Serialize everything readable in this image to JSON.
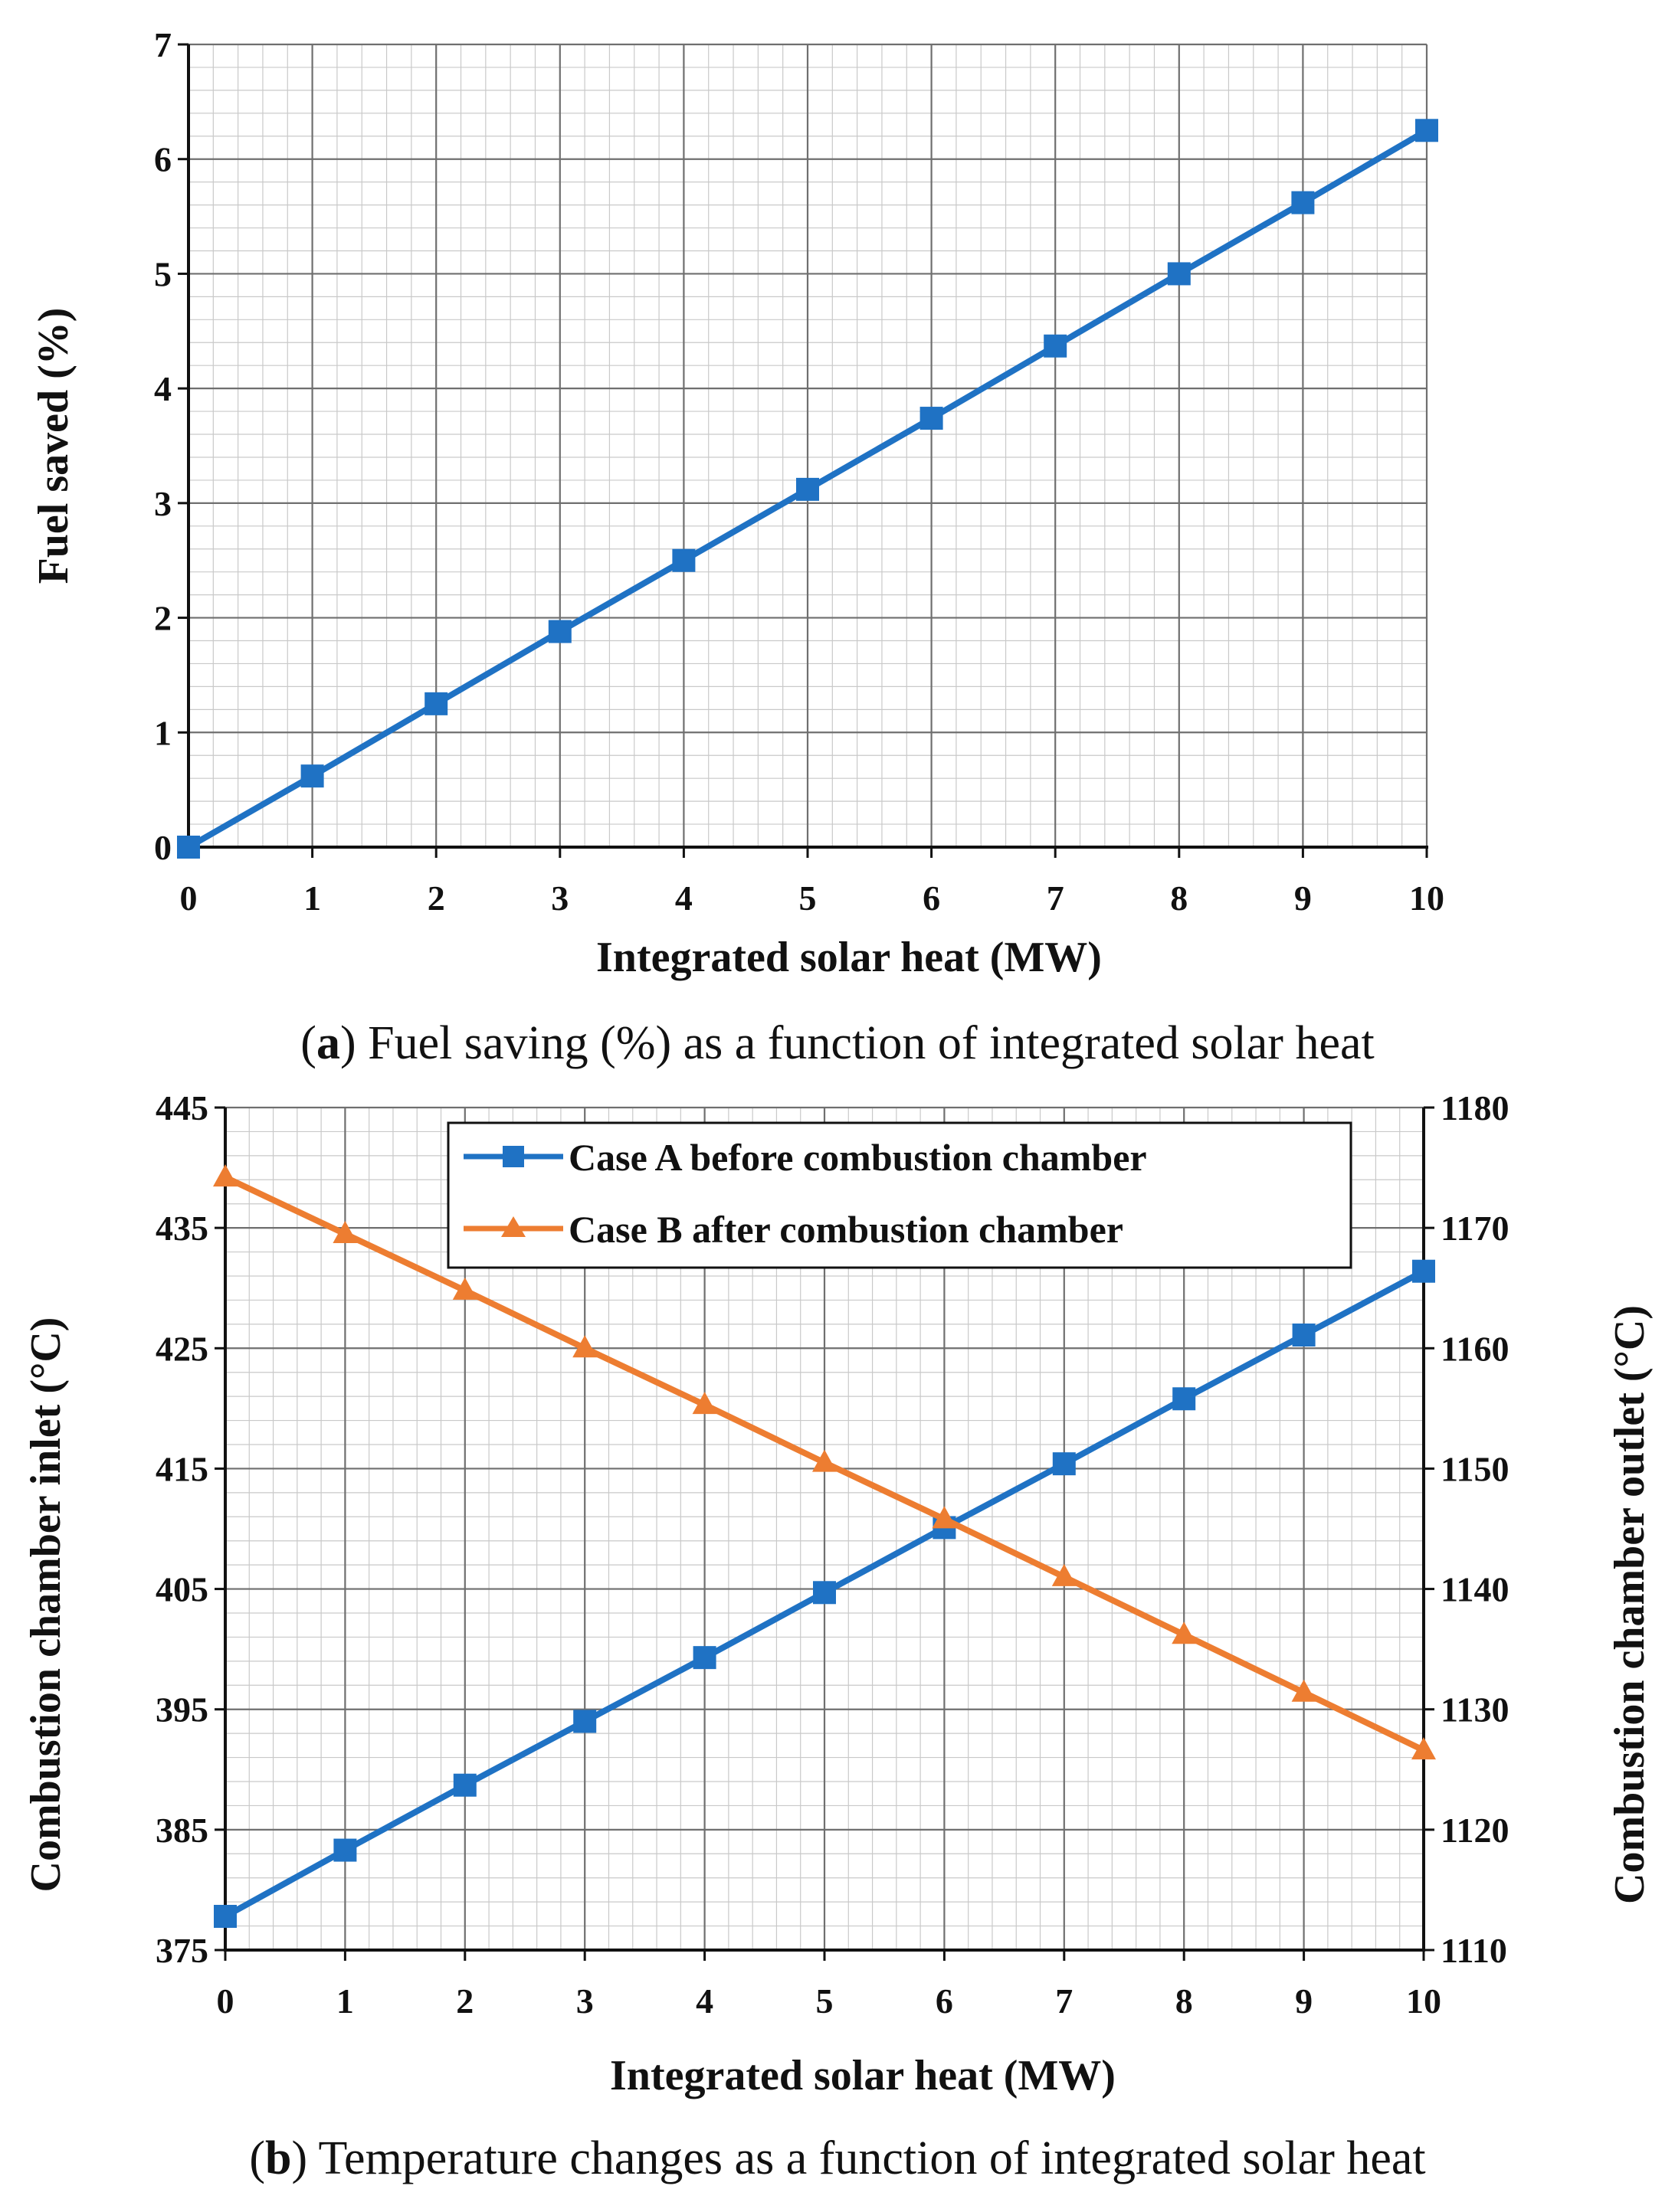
{
  "chart_data": [
    {
      "type": "line",
      "x": [
        0,
        1,
        2,
        3,
        4,
        5,
        6,
        7,
        8,
        9,
        10
      ],
      "xlim": [
        0,
        10
      ],
      "ylim": [
        0,
        7
      ],
      "xticks": [
        "0",
        "1",
        "2",
        "3",
        "4",
        "5",
        "6",
        "7",
        "8",
        "9",
        "10"
      ],
      "yticks": [
        "0",
        "1",
        "2",
        "3",
        "4",
        "5",
        "6",
        "7"
      ],
      "xlabel": "Integrated solar heat (MW)",
      "ylabel": "Fuel saved (%)",
      "grid": true,
      "series": [
        {
          "name": "Fuel saved",
          "color": "#1f72c4",
          "marker": "square",
          "values": [
            0,
            0.62,
            1.25,
            1.88,
            2.5,
            3.12,
            3.74,
            4.37,
            5.0,
            5.62,
            6.25
          ]
        }
      ],
      "caption": {
        "open": "(",
        "letter": "a",
        "rest": ") Fuel saving (%) as a function of integrated solar heat"
      }
    },
    {
      "type": "line",
      "x": [
        0,
        1,
        2,
        3,
        4,
        5,
        6,
        7,
        8,
        9,
        10
      ],
      "xlim": [
        0,
        10
      ],
      "ylim": [
        375,
        445
      ],
      "ylim_right": [
        1110,
        1180
      ],
      "xticks": [
        "0",
        "1",
        "2",
        "3",
        "4",
        "5",
        "6",
        "7",
        "8",
        "9",
        "10"
      ],
      "yticks": [
        "375",
        "385",
        "395",
        "405",
        "415",
        "425",
        "435",
        "445"
      ],
      "yticks_right": [
        "1110",
        "1120",
        "1130",
        "1140",
        "1150",
        "1160",
        "1170",
        "1180"
      ],
      "xlabel": "Integrated solar heat (MW)",
      "ylabel": "Combustion chamber inlet (°C)",
      "ylabel_right": "Combustion chamber outlet (°C)",
      "grid": true,
      "legend_position": "top-right",
      "series": [
        {
          "name": "Case A before combustion chamber",
          "axis": "left",
          "color": "#1f72c4",
          "marker": "square",
          "values": [
            377.8,
            383.3,
            388.7,
            394.0,
            399.3,
            404.7,
            410.1,
            415.4,
            420.8,
            426.1,
            431.4
          ]
        },
        {
          "name": "Case B after combustion chamber",
          "axis": "right",
          "color": "#ed7d31",
          "marker": "triangle",
          "values": [
            1174.2,
            1169.5,
            1164.8,
            1160.0,
            1155.3,
            1150.5,
            1145.8,
            1141.0,
            1136.2,
            1131.4,
            1126.6
          ]
        }
      ],
      "caption": {
        "open": "(",
        "letter": "b",
        "rest": ") Temperature changes as a function of integrated solar heat"
      }
    }
  ]
}
